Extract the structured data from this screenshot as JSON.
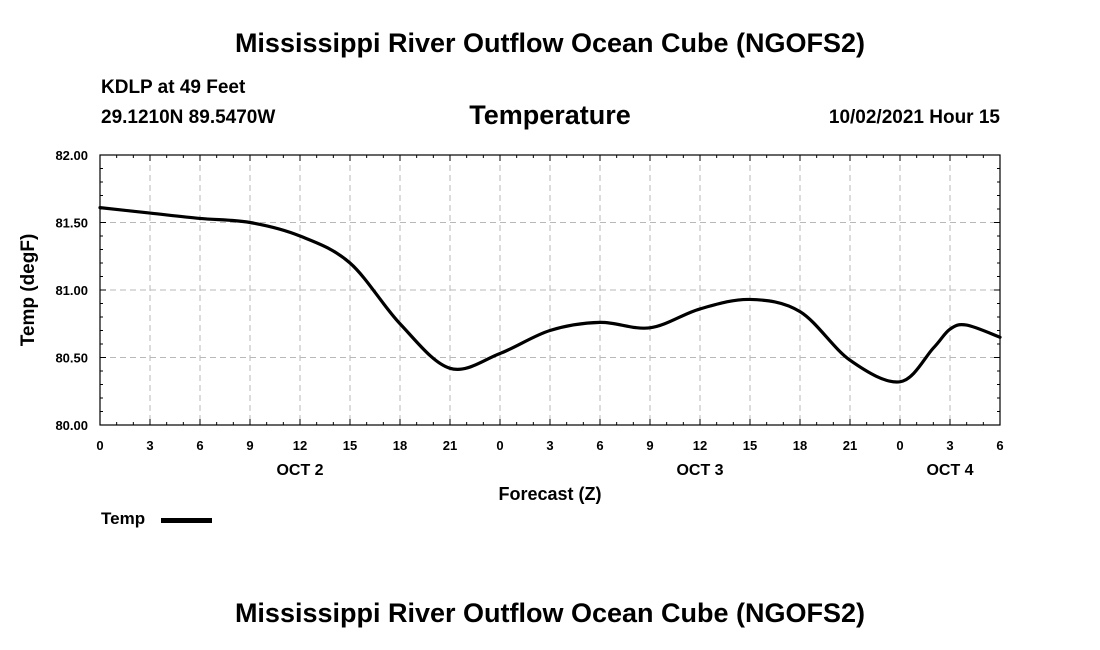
{
  "header": {
    "title": "Mississippi River Outflow Ocean Cube (NGOFS2)",
    "station": "KDLP at 49 Feet",
    "coords": "29.1210N  89.5470W",
    "variable": "Temperature",
    "datetime": "10/02/2021 Hour 15"
  },
  "footer": {
    "title": "Mississippi River Outflow Ocean Cube (NGOFS2)"
  },
  "legend": {
    "label": "Temp",
    "color": "#000000"
  },
  "chart_data": {
    "type": "line",
    "title": "Temperature",
    "xlabel": "Forecast (Z)",
    "ylabel": "Temp (degF)",
    "xlim": [
      0,
      54
    ],
    "ylim": [
      80.0,
      82.0
    ],
    "grid": true,
    "x_ticks": [
      0,
      3,
      6,
      9,
      12,
      15,
      18,
      21,
      24,
      27,
      30,
      33,
      36,
      39,
      42,
      45,
      48,
      51,
      54
    ],
    "x_tick_labels": [
      "0",
      "3",
      "6",
      "9",
      "12",
      "15",
      "18",
      "21",
      "0",
      "3",
      "6",
      "9",
      "12",
      "15",
      "18",
      "21",
      "0",
      "3",
      "6"
    ],
    "y_ticks": [
      80.0,
      80.5,
      81.0,
      81.5,
      82.0
    ],
    "y_tick_labels": [
      "80.00",
      "80.50",
      "81.00",
      "81.50",
      "82.00"
    ],
    "date_labels": [
      {
        "x": 12,
        "label": "OCT 2"
      },
      {
        "x": 36,
        "label": "OCT 3"
      },
      {
        "x": 51,
        "label": "OCT 4"
      }
    ],
    "series": [
      {
        "name": "Temp",
        "x": [
          0,
          3,
          6,
          9,
          12,
          15,
          18,
          21,
          24,
          27,
          30,
          33,
          36,
          39,
          42,
          45,
          48,
          50,
          51,
          52,
          54
        ],
        "y": [
          81.61,
          81.57,
          81.53,
          81.5,
          81.4,
          81.2,
          80.75,
          80.42,
          80.53,
          80.7,
          80.76,
          80.72,
          80.86,
          80.93,
          80.84,
          80.48,
          80.32,
          80.57,
          80.71,
          80.74,
          80.65
        ]
      }
    ]
  }
}
